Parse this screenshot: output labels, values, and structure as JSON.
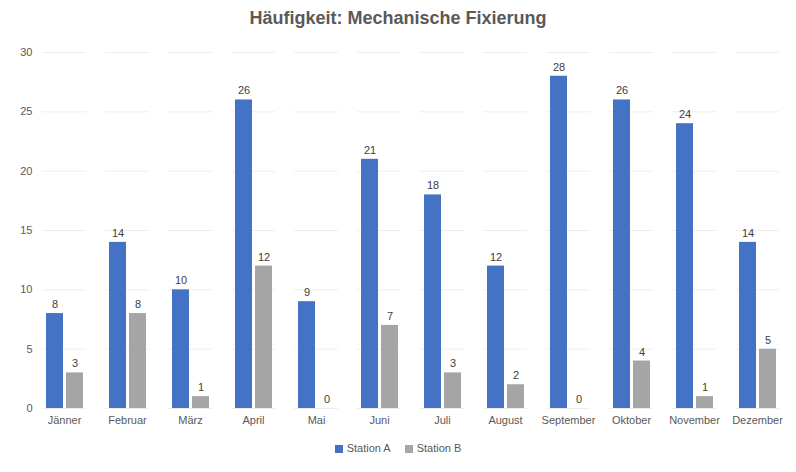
{
  "chart_data": {
    "type": "bar",
    "title": "Häufigkeit: Mechanische Fixierung",
    "categories": [
      "Jänner",
      "Februar",
      "März",
      "April",
      "Mai",
      "Juni",
      "Juli",
      "August",
      "September",
      "Oktober",
      "November",
      "Dezember"
    ],
    "series": [
      {
        "name": "Station A",
        "color": "#4472c4",
        "values": [
          8,
          14,
          10,
          26,
          9,
          21,
          18,
          12,
          28,
          26,
          24,
          14
        ]
      },
      {
        "name": "Station B",
        "color": "#a5a5a5",
        "values": [
          3,
          8,
          1,
          12,
          0,
          7,
          3,
          2,
          0,
          4,
          1,
          5
        ]
      }
    ],
    "ylim": [
      0,
      30
    ],
    "yticks": [
      0,
      5,
      10,
      15,
      20,
      25,
      30
    ],
    "grid": true,
    "data_labels": true,
    "legend": "bottom"
  }
}
